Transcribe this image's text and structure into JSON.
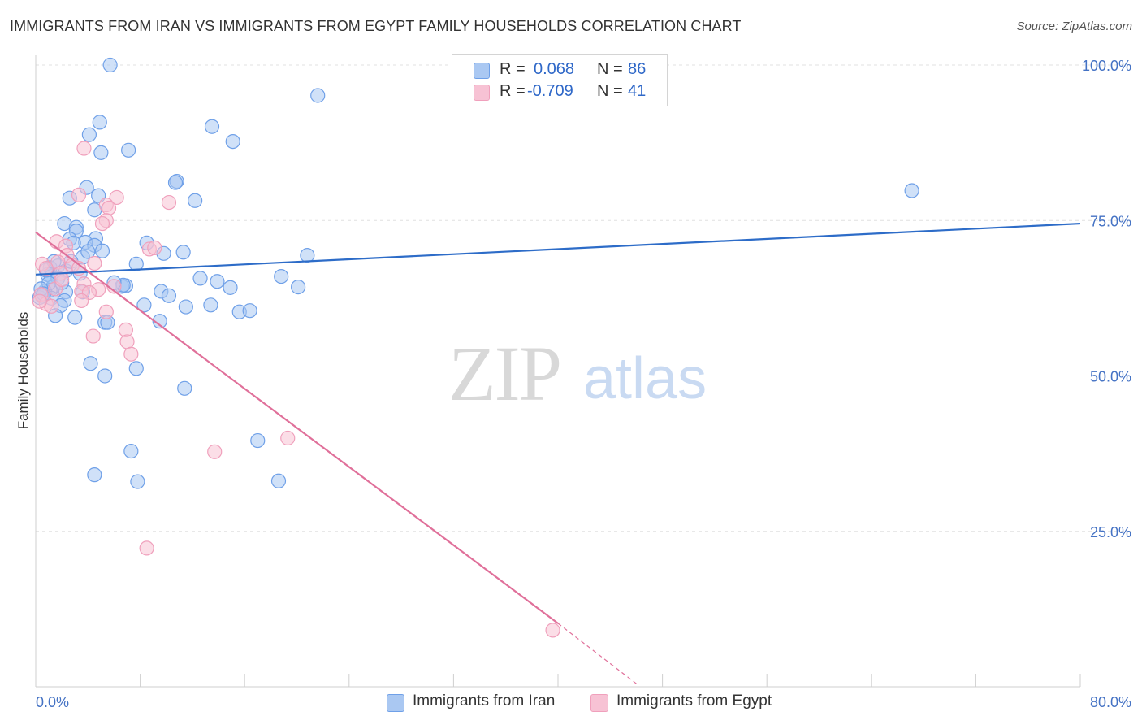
{
  "title": "IMMIGRANTS FROM IRAN VS IMMIGRANTS FROM EGYPT FAMILY HOUSEHOLDS CORRELATION CHART",
  "source": "Source: ZipAtlas.com",
  "watermark": {
    "zip": "ZIP",
    "atlas": "atlas"
  },
  "legend": {
    "iran": {
      "r_label": "R =",
      "r_value": "0.068",
      "n_label": "N =",
      "n_value": "86"
    },
    "egypt": {
      "r_label": "R =",
      "r_value": "-0.709",
      "n_label": "N =",
      "n_value": "41"
    }
  },
  "chart_data": {
    "type": "scatter",
    "title": "IMMIGRANTS FROM IRAN VS IMMIGRANTS FROM EGYPT FAMILY HOUSEHOLDS CORRELATION CHART",
    "xlabel": "",
    "ylabel": "Family Households",
    "xlim": [
      0,
      80
    ],
    "ylim": [
      0,
      100
    ],
    "x_tick_labels": [
      "0.0%",
      "80.0%"
    ],
    "y_tick_labels": [
      "100.0%",
      "75.0%",
      "50.0%",
      "25.0%"
    ],
    "y_ticks": [
      100,
      75,
      50,
      25
    ],
    "legend_position": "top-center",
    "series": [
      {
        "name": "Immigrants from Iran",
        "color": "#6fa0e8",
        "fill": "#aac8f2",
        "trend_color": "#2d6cc8",
        "trend": {
          "x0": 0,
          "y0": 66.3,
          "x1": 80,
          "y1": 74.5
        },
        "points": [
          [
            5.7,
            100.0
          ],
          [
            21.6,
            95.1
          ],
          [
            4.9,
            90.8
          ],
          [
            13.5,
            90.1
          ],
          [
            4.1,
            88.8
          ],
          [
            15.1,
            87.7
          ],
          [
            5.0,
            85.9
          ],
          [
            7.1,
            86.3
          ],
          [
            10.8,
            81.3
          ],
          [
            10.7,
            81.1
          ],
          [
            3.9,
            80.3
          ],
          [
            12.2,
            78.2
          ],
          [
            2.6,
            78.6
          ],
          [
            4.8,
            79.0
          ],
          [
            4.5,
            76.7
          ],
          [
            67.1,
            79.8
          ],
          [
            2.2,
            74.5
          ],
          [
            3.1,
            73.9
          ],
          [
            3.1,
            73.3
          ],
          [
            2.6,
            72.0
          ],
          [
            4.6,
            72.1
          ],
          [
            3.8,
            71.5
          ],
          [
            2.9,
            71.4
          ],
          [
            4.5,
            71.0
          ],
          [
            8.5,
            71.4
          ],
          [
            5.1,
            70.1
          ],
          [
            11.3,
            69.9
          ],
          [
            9.8,
            69.7
          ],
          [
            20.8,
            69.4
          ],
          [
            3.6,
            69.1
          ],
          [
            7.7,
            68.0
          ],
          [
            1.7,
            67.7
          ],
          [
            1.1,
            67.4
          ],
          [
            2.3,
            66.9
          ],
          [
            0.9,
            66.3
          ],
          [
            1.2,
            66.0
          ],
          [
            1.7,
            65.7
          ],
          [
            12.6,
            65.7
          ],
          [
            18.8,
            66.0
          ],
          [
            13.9,
            65.2
          ],
          [
            6.6,
            64.4
          ],
          [
            6.9,
            64.5
          ],
          [
            6.7,
            64.6
          ],
          [
            14.9,
            64.2
          ],
          [
            1.3,
            64.3
          ],
          [
            1.1,
            63.8
          ],
          [
            0.7,
            63.6
          ],
          [
            2.3,
            63.5
          ],
          [
            3.6,
            63.5
          ],
          [
            9.6,
            63.6
          ],
          [
            10.2,
            62.9
          ],
          [
            0.5,
            62.8
          ],
          [
            20.1,
            64.3
          ],
          [
            0.3,
            62.6
          ],
          [
            1.2,
            62.5
          ],
          [
            2.2,
            62.1
          ],
          [
            1.9,
            61.3
          ],
          [
            13.4,
            61.4
          ],
          [
            8.3,
            61.4
          ],
          [
            11.5,
            61.1
          ],
          [
            15.6,
            60.3
          ],
          [
            16.4,
            60.5
          ],
          [
            1.5,
            59.7
          ],
          [
            3.0,
            59.4
          ],
          [
            9.5,
            58.8
          ],
          [
            5.3,
            58.6
          ],
          [
            5.5,
            58.6
          ],
          [
            4.2,
            52.0
          ],
          [
            7.7,
            51.2
          ],
          [
            5.3,
            50.0
          ],
          [
            11.4,
            48.0
          ],
          [
            7.3,
            37.9
          ],
          [
            17.0,
            39.6
          ],
          [
            4.5,
            34.1
          ],
          [
            7.8,
            33.0
          ],
          [
            18.6,
            33.1
          ],
          [
            1.0,
            64.9
          ],
          [
            2.0,
            65.0
          ],
          [
            0.4,
            64.0
          ],
          [
            3.4,
            66.5
          ],
          [
            6.0,
            65.0
          ],
          [
            0.8,
            67.0
          ],
          [
            2.7,
            68.4
          ],
          [
            4.0,
            70.0
          ],
          [
            1.4,
            68.4
          ],
          [
            0.6,
            63.2
          ]
        ]
      },
      {
        "name": "Immigrants from Egypt",
        "color": "#f0a0bc",
        "fill": "#f7c2d4",
        "trend_color": "#e0709a",
        "trend": {
          "x0": 0,
          "y0": 73.1,
          "x1": 40,
          "y1": 10.2
        },
        "trend_dashed": {
          "x0": 40,
          "y0": 10.2,
          "x1": 46,
          "y1": 0.5
        },
        "points": [
          [
            3.7,
            86.6
          ],
          [
            3.3,
            79.1
          ],
          [
            6.2,
            78.7
          ],
          [
            5.4,
            77.5
          ],
          [
            10.2,
            77.9
          ],
          [
            5.6,
            77.0
          ],
          [
            5.4,
            75.0
          ],
          [
            5.1,
            74.5
          ],
          [
            1.6,
            71.6
          ],
          [
            2.3,
            70.9
          ],
          [
            8.7,
            70.4
          ],
          [
            2.4,
            69.4
          ],
          [
            9.1,
            70.6
          ],
          [
            4.5,
            68.1
          ],
          [
            1.7,
            68.3
          ],
          [
            0.5,
            68.0
          ],
          [
            0.8,
            67.3
          ],
          [
            2.8,
            67.8
          ],
          [
            3.3,
            67.3
          ],
          [
            1.9,
            66.5
          ],
          [
            3.7,
            64.8
          ],
          [
            6.0,
            64.4
          ],
          [
            4.8,
            63.9
          ],
          [
            3.5,
            63.6
          ],
          [
            4.1,
            63.4
          ],
          [
            0.4,
            63.1
          ],
          [
            3.5,
            62.1
          ],
          [
            0.8,
            61.6
          ],
          [
            1.2,
            61.2
          ],
          [
            5.4,
            60.3
          ],
          [
            6.9,
            57.4
          ],
          [
            4.4,
            56.4
          ],
          [
            7.0,
            55.5
          ],
          [
            7.3,
            53.5
          ],
          [
            19.3,
            40.0
          ],
          [
            13.7,
            37.8
          ],
          [
            8.5,
            22.3
          ],
          [
            39.6,
            9.1
          ],
          [
            0.3,
            62.0
          ],
          [
            1.5,
            64.0
          ],
          [
            2.0,
            65.5
          ]
        ]
      }
    ]
  },
  "bottom_legend": [
    {
      "label": "Immigrants from Iran"
    },
    {
      "label": "Immigrants from Egypt"
    }
  ],
  "colors": {
    "iran_fill": "#aac8f2",
    "iran_stroke": "#6fa0e8",
    "iran_line": "#2d6cc8",
    "egypt_fill": "#f7c2d4",
    "egypt_stroke": "#f0a0bc",
    "egypt_line": "#e0709a",
    "tick_text": "#4472c4",
    "grid": "#e0e0e0"
  }
}
